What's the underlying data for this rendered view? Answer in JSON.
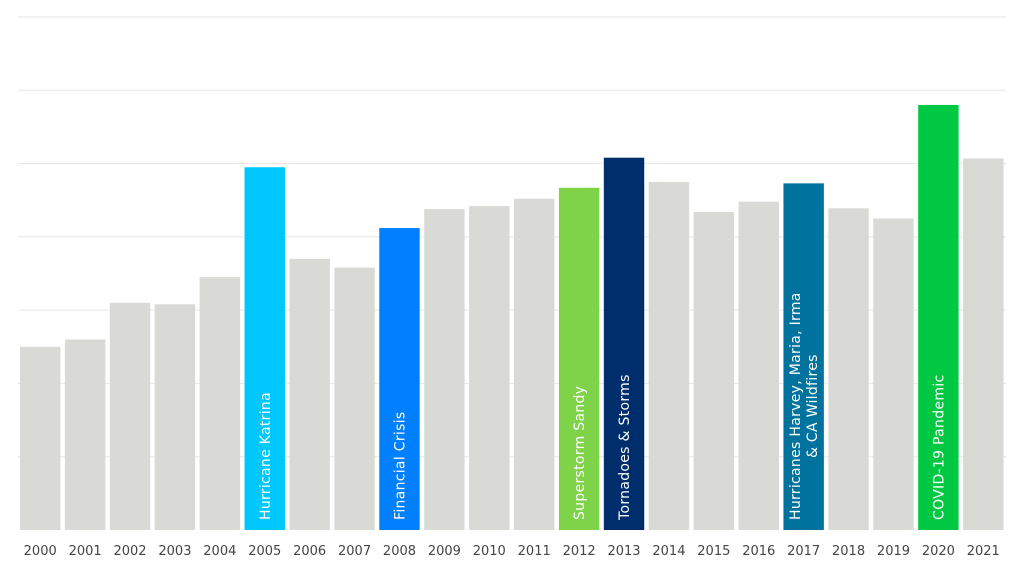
{
  "chart_data": {
    "type": "bar",
    "title": "",
    "xlabel": "",
    "ylabel": "",
    "ylim": [
      0,
      7
    ],
    "grid": true,
    "gridlines": [
      1,
      2,
      3,
      4,
      5,
      6,
      7
    ],
    "categories": [
      "2000",
      "2001",
      "2002",
      "2003",
      "2004",
      "2005",
      "2006",
      "2007",
      "2008",
      "2009",
      "2010",
      "2011",
      "2012",
      "2013",
      "2014",
      "2015",
      "2016",
      "2017",
      "2018",
      "2019",
      "2020",
      "2021"
    ],
    "values": [
      2.5,
      2.6,
      3.1,
      3.08,
      3.45,
      4.95,
      3.7,
      3.58,
      4.12,
      4.38,
      4.42,
      4.52,
      4.67,
      5.08,
      4.75,
      4.34,
      4.48,
      4.73,
      4.39,
      4.25,
      5.8,
      5.07
    ],
    "bar_labels": [
      "",
      "",
      "",
      "",
      "",
      "Hurricane Katrina",
      "",
      "",
      "Financial Crisis",
      "",
      "",
      "",
      "Superstorm Sandy",
      "Tornadoes & Storms",
      "",
      "",
      "",
      "Hurricanes Harvey, Maria, Irma & CA Wildfires",
      "",
      "",
      "COVID-19 Pandemic",
      ""
    ],
    "bar_label_lines": [
      [],
      [],
      [],
      [],
      [],
      [
        "Hurricane Katrina"
      ],
      [],
      [],
      [
        "Financial Crisis"
      ],
      [],
      [],
      [],
      [
        "Superstorm Sandy"
      ],
      [
        "Tornadoes & Storms"
      ],
      [],
      [],
      [],
      [
        "Hurricanes Harvey, Maria, Irma",
        "& CA Wildfires"
      ],
      [],
      [],
      [
        "COVID-19 Pandemic"
      ],
      []
    ],
    "colors": {
      "default": "#d9d9d6",
      "highlights": {
        "2005": "#00c8ff",
        "2008": "#0080ff",
        "2012": "#7ed348",
        "2013": "#002e6d",
        "2017": "#00729e",
        "2020": "#00c843"
      },
      "grid": "#e6e6e6",
      "label": "#ffffff",
      "tick": "#444444"
    }
  }
}
